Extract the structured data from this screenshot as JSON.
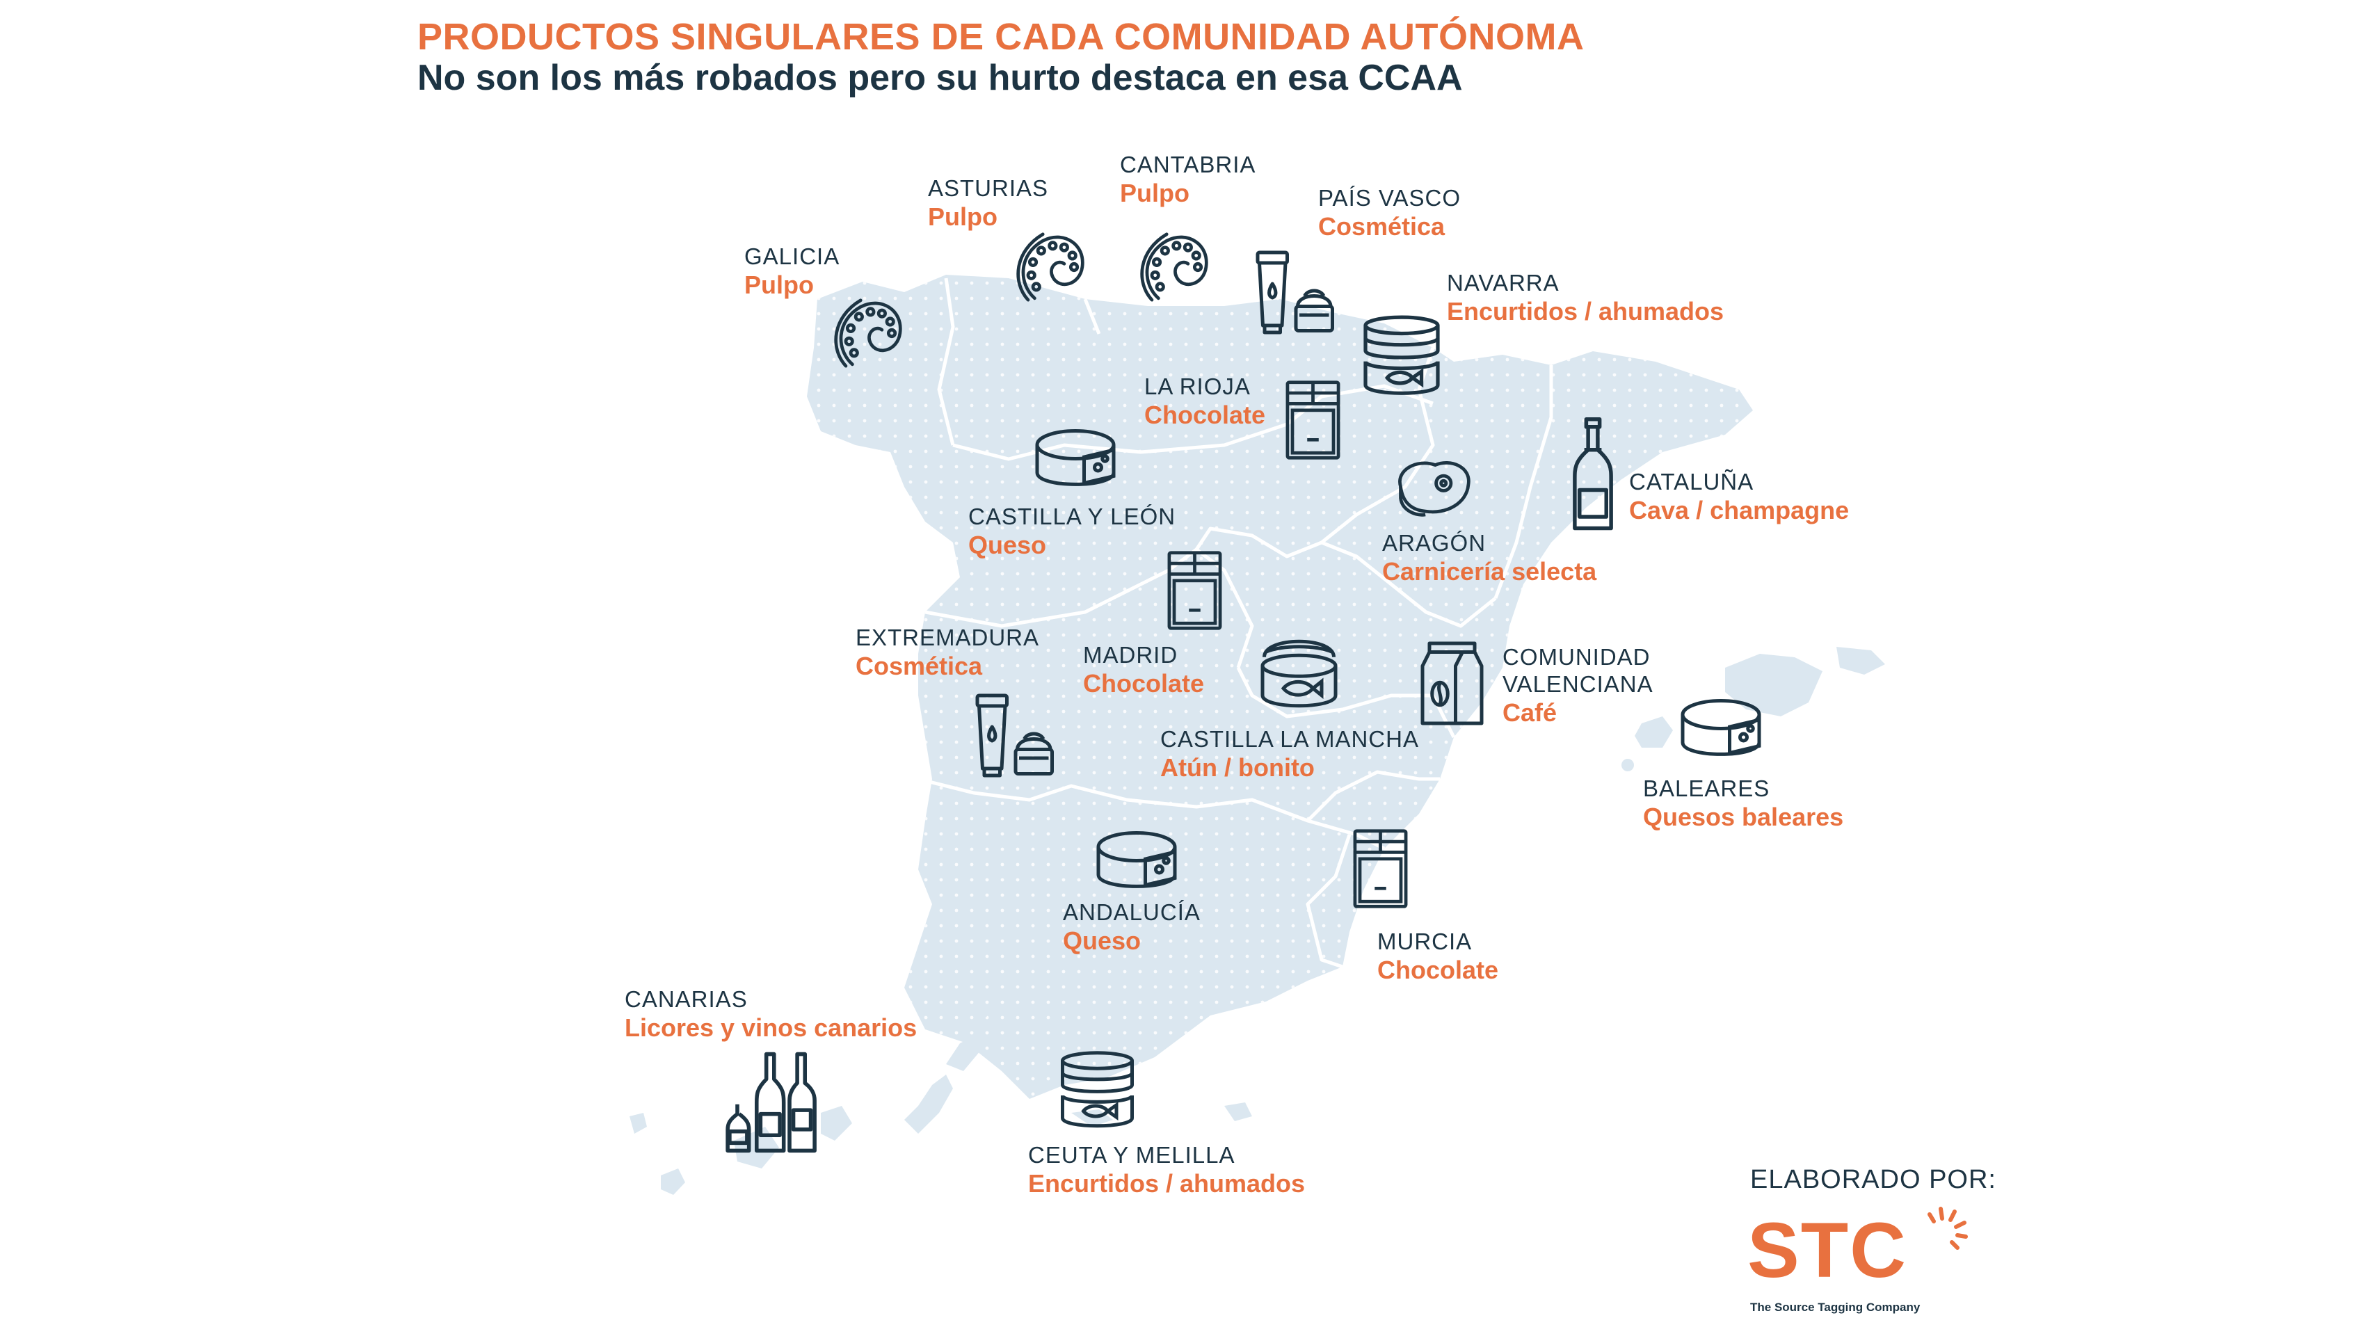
{
  "title": "PRODUCTOS SINGULARES DE CADA COMUNIDAD AUTÓNOMA",
  "subtitle": "No son los más robados pero su hurto destaca en esa CCAA",
  "regions": [
    {
      "name": "GALICIA",
      "product": "Pulpo",
      "icon": "octopus-icon"
    },
    {
      "name": "ASTURIAS",
      "product": "Pulpo",
      "icon": "octopus-icon"
    },
    {
      "name": "CANTABRIA",
      "product": "Pulpo",
      "icon": "octopus-icon"
    },
    {
      "name": "PAÍS VASCO",
      "product": "Cosmética",
      "icon": "cosmetics-icon"
    },
    {
      "name": "NAVARRA",
      "product": "Encurtidos / ahumados",
      "icon": "canned-fish-icon"
    },
    {
      "name": "LA RIOJA",
      "product": "Chocolate",
      "icon": "chocolate-bar-icon"
    },
    {
      "name": "CASTILLA Y LEÓN",
      "product": "Queso",
      "icon": "cheese-icon"
    },
    {
      "name": "ARAGÓN",
      "product": "Carnicería selecta",
      "icon": "steak-icon"
    },
    {
      "name": "CATALUÑA",
      "product": "Cava / champagne",
      "icon": "champagne-bottle-icon"
    },
    {
      "name": "EXTREMADURA",
      "product": "Cosmética",
      "icon": "cosmetics-icon"
    },
    {
      "name": "MADRID",
      "product": "Chocolate",
      "icon": "chocolate-bar-icon"
    },
    {
      "name": "CASTILLA LA MANCHA",
      "product": "Atún / bonito",
      "icon": "tuna-can-icon"
    },
    {
      "name": "COMUNIDAD",
      "name2": "VALENCIANA",
      "product": "Café",
      "icon": "coffee-bag-icon"
    },
    {
      "name": "BALEARES",
      "product": "Quesos baleares",
      "icon": "cheese-icon"
    },
    {
      "name": "ANDALUCÍA",
      "product": "Queso",
      "icon": "cheese-icon"
    },
    {
      "name": "MURCIA",
      "product": "Chocolate",
      "icon": "chocolate-bar-icon"
    },
    {
      "name": "CANARIAS",
      "product": "Licores y vinos canarios",
      "icon": "bottles-icon"
    },
    {
      "name": "CEUTA Y MELILLA",
      "product": "Encurtidos / ahumados",
      "icon": "canned-fish-icon"
    }
  ],
  "credits": {
    "label": "ELABORADO POR:",
    "logo": "STC",
    "tagline": "The Source Tagging Company"
  },
  "colors": {
    "accent": "#e8713f",
    "dark": "#1d3443",
    "map_fill": "#dbe7f0"
  }
}
